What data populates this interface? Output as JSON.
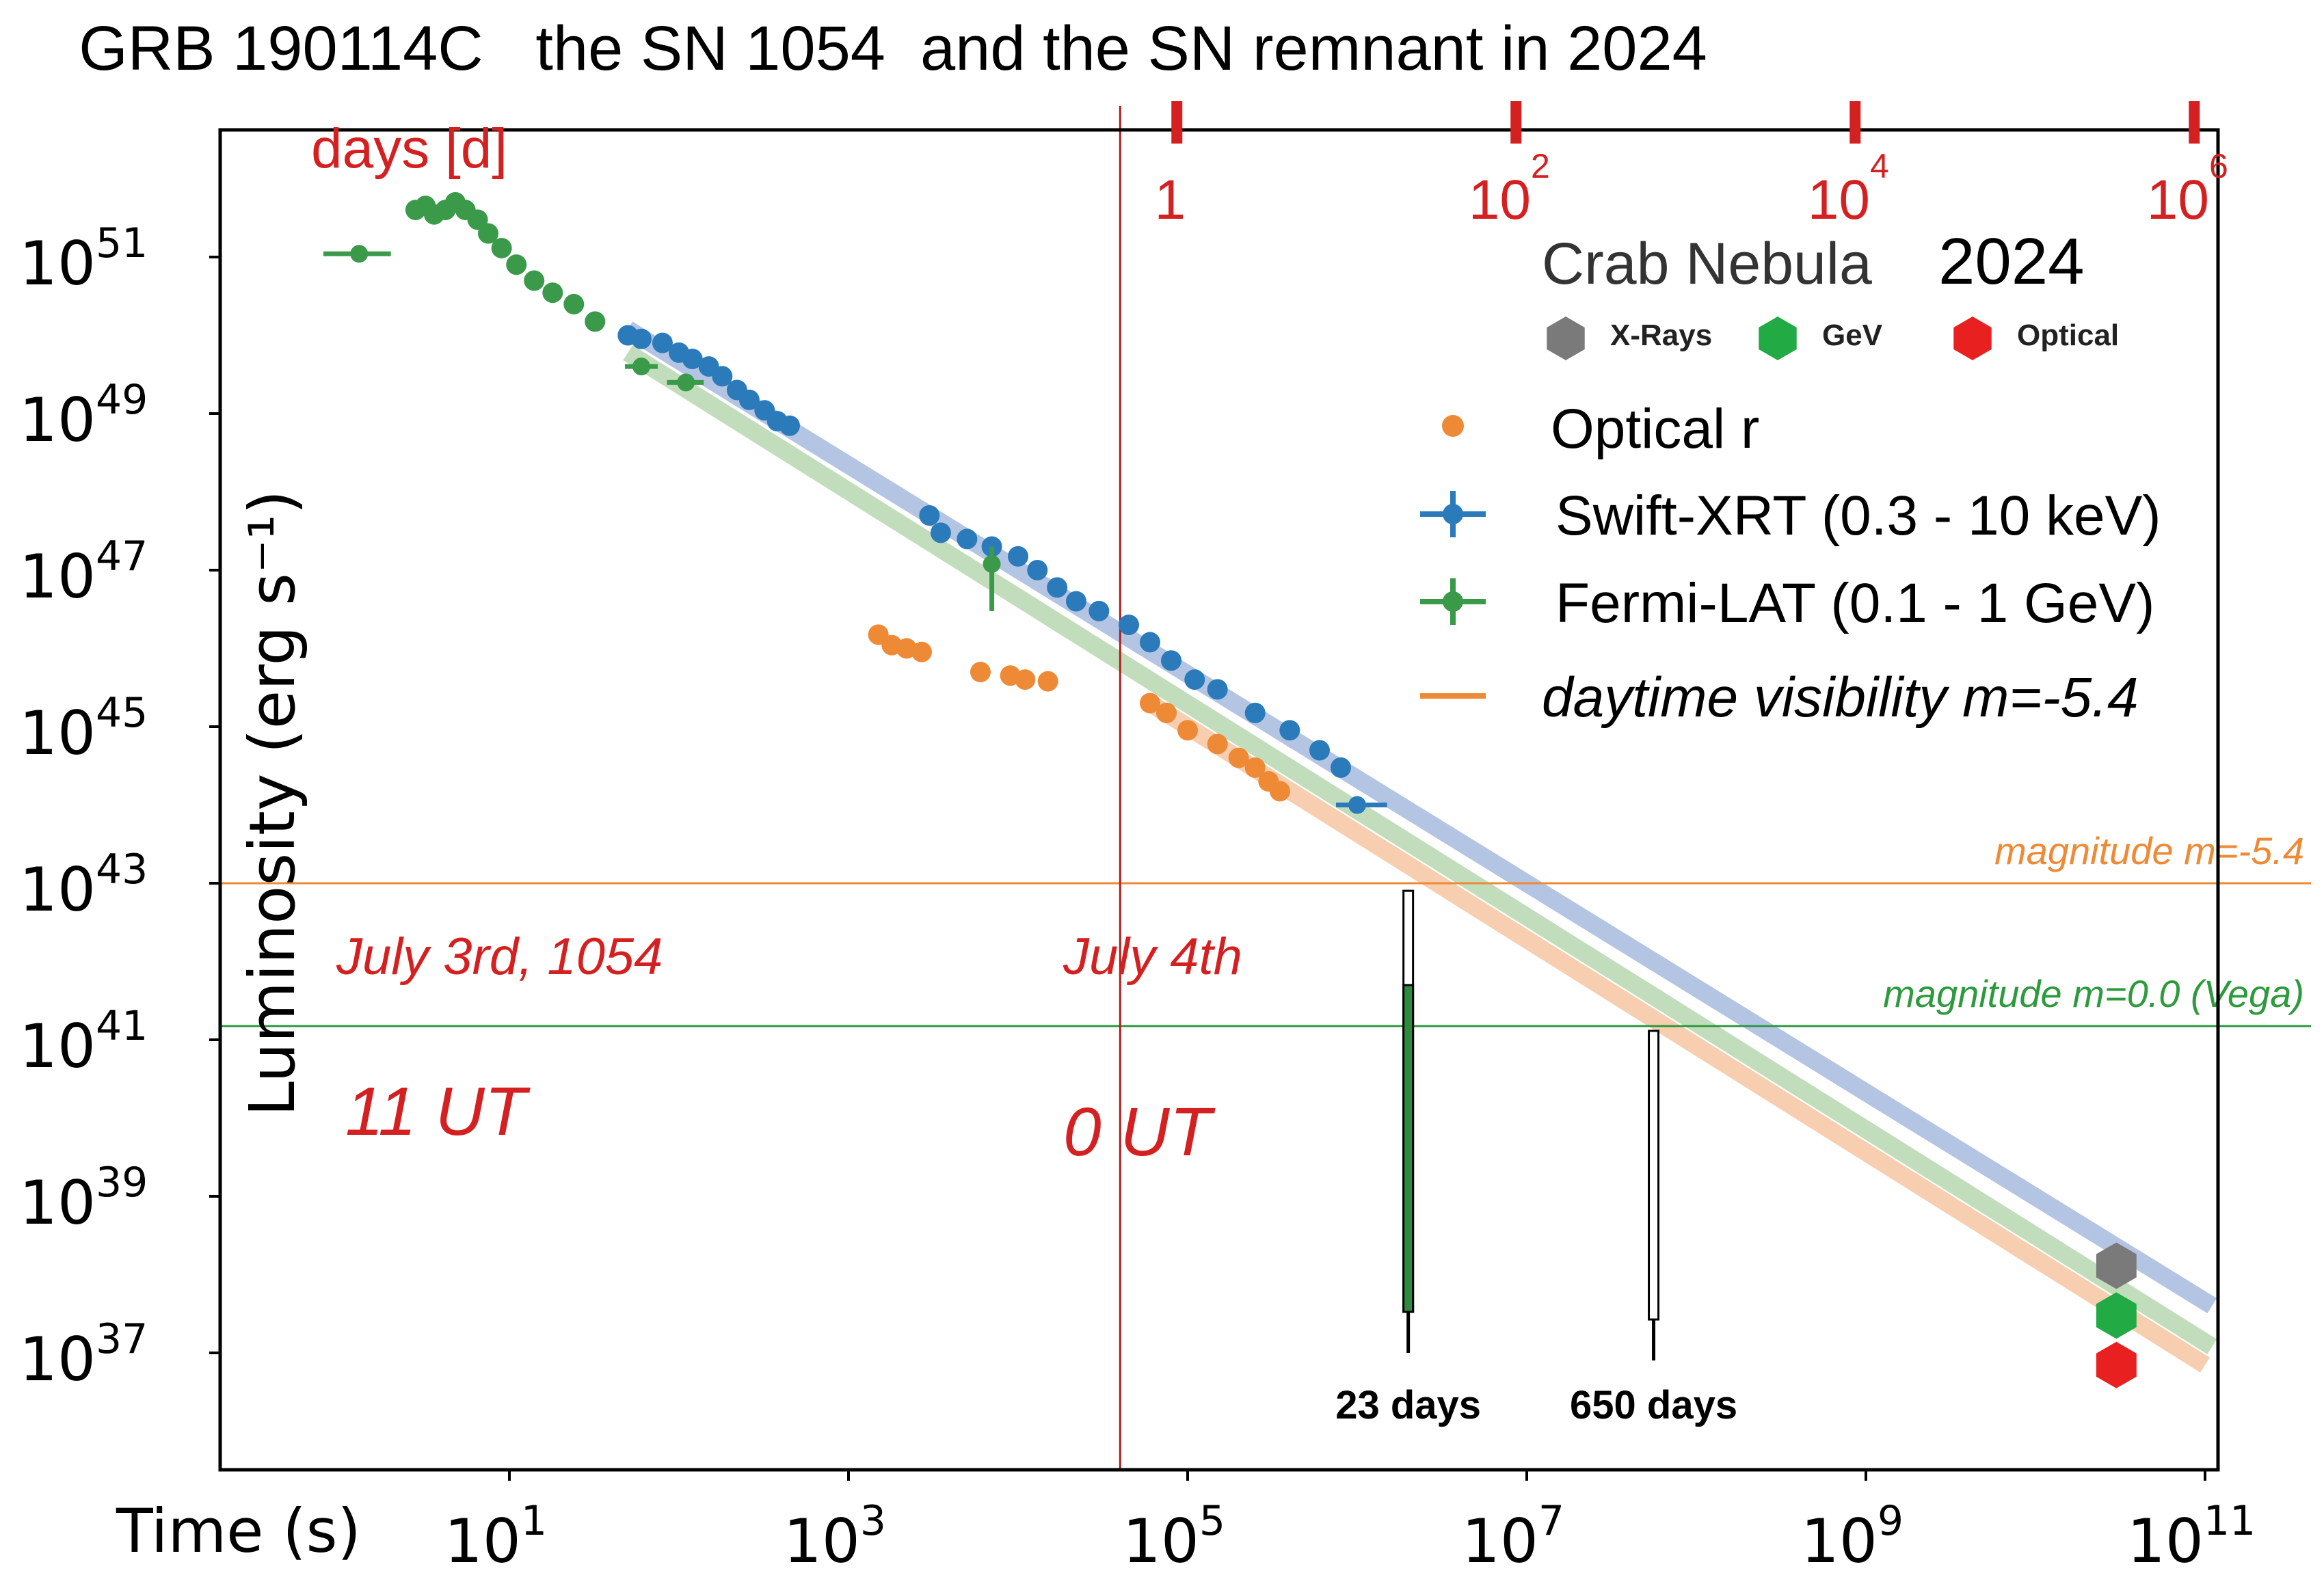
{
  "chart_data": {
    "type": "scatter",
    "title": "GRB 190114C   the SN 1054  and the SN remnant in 2024",
    "xlabel": "Time (s)",
    "ylabel": "Luminosity (erg s⁻¹)",
    "xscale": "log",
    "yscale": "log",
    "xlim": [
      1,
      200000000000
    ],
    "ylim": [
      1e+36,
      1e+53
    ],
    "xticks": [
      {
        "value": 10,
        "label": "10",
        "exp": "1"
      },
      {
        "value": 1000,
        "label": "10",
        "exp": "3"
      },
      {
        "value": 100000,
        "label": "10",
        "exp": "5"
      },
      {
        "value": 10000000,
        "label": "10",
        "exp": "7"
      },
      {
        "value": 1000000000,
        "label": "10",
        "exp": "9"
      },
      {
        "value": 100000000000,
        "label": "10",
        "exp": "11"
      }
    ],
    "yticks": [
      {
        "value": 1e+51,
        "label": "10",
        "exp": "51"
      },
      {
        "value": 1e+49,
        "label": "10",
        "exp": "49"
      },
      {
        "value": 1e+47,
        "label": "10",
        "exp": "47"
      },
      {
        "value": 1e+45,
        "label": "10",
        "exp": "45"
      },
      {
        "value": 1e+43,
        "label": "10",
        "exp": "43"
      },
      {
        "value": 1e+41,
        "label": "10",
        "exp": "41"
      },
      {
        "value": 1e+39,
        "label": "10",
        "exp": "39"
      },
      {
        "value": 1e+37,
        "label": "10",
        "exp": "37"
      }
    ],
    "top_axis": {
      "label": "days [d]",
      "ticks": [
        {
          "days": 1,
          "label": "1",
          "exp": ""
        },
        {
          "days": 100,
          "label": "10",
          "exp": "2"
        },
        {
          "days": 10000,
          "label": "10",
          "exp": "4"
        },
        {
          "days": 1000000,
          "label": "10",
          "exp": "6"
        }
      ]
    },
    "series": [
      {
        "name": "Optical r",
        "color": "#ee8a35",
        "marker": "circle",
        "points": [
          [
            1500,
            1.5e+46
          ],
          [
            1800,
            1.1e+46
          ],
          [
            2200,
            1e+46
          ],
          [
            2700,
            9e+45
          ],
          [
            6000,
            5e+45
          ],
          [
            9000,
            4.5e+45
          ],
          [
            11000,
            4e+45
          ],
          [
            15000,
            3.8e+45
          ],
          [
            60000,
            2e+45
          ],
          [
            75000,
            1.5e+45
          ],
          [
            100000,
            9e+44
          ],
          [
            150000,
            6e+44
          ],
          [
            200000,
            4e+44
          ],
          [
            250000,
            3e+44
          ],
          [
            300000,
            2e+44
          ],
          [
            350000,
            1.5e+44
          ]
        ]
      },
      {
        "name": "Swift-XRT (0.3 - 10 keV)",
        "color": "#2b7bba",
        "marker": "circle",
        "points": [
          [
            50,
            1e+50
          ],
          [
            60,
            9e+49
          ],
          [
            80,
            8e+49
          ],
          [
            100,
            6e+49
          ],
          [
            120,
            5e+49
          ],
          [
            150,
            4e+49
          ],
          [
            180,
            3e+49
          ],
          [
            220,
            2e+49
          ],
          [
            260,
            1.5e+49
          ],
          [
            320,
            1.1e+49
          ],
          [
            380,
            8e+48
          ],
          [
            450,
            7e+48
          ],
          [
            3000,
            5e+47
          ],
          [
            3500,
            3e+47
          ],
          [
            5000,
            2.5e+47
          ],
          [
            7000,
            2e+47
          ],
          [
            10000,
            1.5e+47
          ],
          [
            13000,
            1e+47
          ],
          [
            17000,
            6e+46
          ],
          [
            22000,
            4e+46
          ],
          [
            30000,
            3e+46
          ],
          [
            45000,
            2e+46
          ],
          [
            60000,
            1.2e+46
          ],
          [
            80000,
            7e+45
          ],
          [
            110000,
            4e+45
          ],
          [
            150000,
            3e+45
          ],
          [
            250000,
            1.5e+45
          ],
          [
            400000,
            9e+44
          ],
          [
            600000,
            5e+44
          ],
          [
            800000,
            3e+44
          ]
        ],
        "errors": [
          {
            "x": 1000000,
            "y": 1e+44,
            "xlo": 750000,
            "xhi": 1500000
          }
        ]
      },
      {
        "name": "Fermi-LAT (0.1 - 1 GeV)",
        "color": "#3a9a4a",
        "marker": "circle",
        "points": [
          [
            2.8,
            4e+51
          ],
          [
            3.2,
            4.5e+51
          ],
          [
            3.6,
            3.5e+51
          ],
          [
            4.2,
            4e+51
          ],
          [
            4.8,
            5e+51
          ],
          [
            5.5,
            4e+51
          ],
          [
            6.5,
            3e+51
          ],
          [
            7.5,
            2e+51
          ],
          [
            9,
            1.3e+51
          ],
          [
            11,
            8e+50
          ],
          [
            14,
            5e+50
          ],
          [
            18,
            3.5e+50
          ],
          [
            24,
            2.5e+50
          ],
          [
            32,
            1.5e+50
          ]
        ],
        "errors": [
          {
            "x": 1.3,
            "y": 1.1e+51,
            "xlo": 0.8,
            "xhi": 2
          },
          {
            "x": 60,
            "y": 4e+49,
            "xlo": 48,
            "xhi": 75
          },
          {
            "x": 110,
            "y": 2.5e+49,
            "xlo": 85,
            "xhi": 140
          },
          {
            "x": 7000,
            "y": 1.2e+47,
            "xlo": 6500,
            "xhi": 7500,
            "ylo": 3e+46,
            "yhi": 2e+47
          }
        ]
      }
    ],
    "fit_lines": [
      {
        "color": "#a8bce0",
        "from": [
          50,
          1.2e+50
        ],
        "to": [
          110000000000,
          4e+37
        ]
      },
      {
        "color": "#b8d8b0",
        "from": [
          50,
          6e+49
        ],
        "to": [
          110000000000,
          1.2e+37
        ]
      },
      {
        "color": "#f6c6a2",
        "from": [
          60000,
          2e+45
        ],
        "to": [
          100000000000,
          7e+36
        ]
      }
    ],
    "crab_2024": {
      "title": "Crab Nebula",
      "year": "2024",
      "time_s": 30000000000,
      "points": [
        {
          "name": "X-Rays",
          "y": 1.3e+38,
          "color": "#7a7a7a"
        },
        {
          "name": "GeV",
          "y": 3e+37,
          "color": "#22aa44"
        },
        {
          "name": "Optical",
          "y": 7e+36,
          "color": "#e82020"
        }
      ]
    },
    "hlines": [
      {
        "label": "magnitude m=-5.4",
        "y": 1e+43,
        "color": "#ee8a35"
      },
      {
        "label": "magnitude m=0.0  (Vega)",
        "y": 1.5e+41,
        "color": "#2e9a3e"
      }
    ],
    "vline": {
      "x": 40000,
      "color": "#b02020"
    },
    "visibility_bars": [
      {
        "label": "23 days",
        "x": 2000000,
        "y_top": 8e+42,
        "y_bottom": 1e+37,
        "y_fill_top": 5e+41,
        "color": "#2e8a3e"
      },
      {
        "label": "650 days",
        "x": 56000000,
        "y_top": 1.3e+41,
        "y_bottom": 8e+36,
        "color": "#ffffff"
      }
    ],
    "legend": {
      "position": "top-right",
      "entries": [
        {
          "label": "Optical r",
          "color": "#ee8a35",
          "kind": "dot"
        },
        {
          "label": "Swift-XRT (0.3 - 10 keV)",
          "color": "#2b7bba",
          "kind": "errorbar"
        },
        {
          "label": "Fermi-LAT (0.1 - 1 GeV)",
          "color": "#3a9a4a",
          "kind": "errorbar"
        },
        {
          "label": "daytime visibility m=-5.4",
          "color": "#ee8a35",
          "kind": "line"
        }
      ]
    },
    "annotations": [
      {
        "text": "July 3rd, 1054",
        "color": "#d42020"
      },
      {
        "text": "July 4th",
        "color": "#d42020"
      },
      {
        "text": "11 UT",
        "color": "#d42020"
      },
      {
        "text": "0 UT",
        "color": "#d42020"
      }
    ],
    "grid": false
  }
}
